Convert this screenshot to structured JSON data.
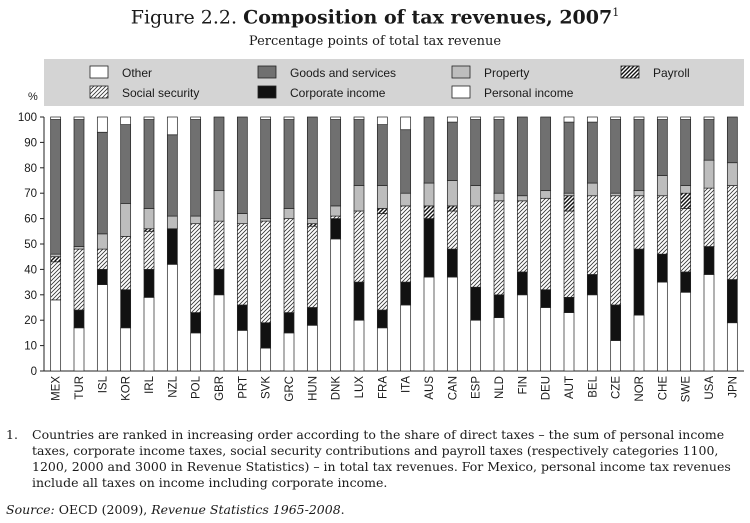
{
  "figure": {
    "label": "Figure 2.2.",
    "title": "Composition of tax revenues, 2007",
    "title_note_marker": "1",
    "subtitle": "Percentage points of total tax revenue"
  },
  "chart_data": {
    "type": "bar",
    "stacked": true,
    "y_axis_label": "%",
    "ylim": [
      0,
      100
    ],
    "yticks": [
      0,
      10,
      20,
      30,
      40,
      50,
      60,
      70,
      80,
      90,
      100
    ],
    "grid": false,
    "legend_position": "top",
    "categories": [
      "MEX",
      "TUR",
      "ISL",
      "KOR",
      "IRL",
      "NZL",
      "POL",
      "GBR",
      "PRT",
      "SVK",
      "GRC",
      "HUN",
      "DNK",
      "LUX",
      "FRA",
      "ITA",
      "AUS",
      "CAN",
      "ESP",
      "NLD",
      "FIN",
      "DEU",
      "AUT",
      "BEL",
      "CZE",
      "NOR",
      "CHE",
      "SWE",
      "USA",
      "JPN"
    ],
    "series": [
      {
        "name": "Personal income",
        "key": "personal",
        "pattern": "white",
        "values": [
          28,
          17,
          34,
          17,
          29,
          42,
          15,
          30,
          16,
          9,
          15,
          18,
          52,
          20,
          17,
          26,
          37,
          37,
          20,
          21,
          30,
          25,
          23,
          30,
          12,
          22,
          35,
          31,
          38,
          19
        ]
      },
      {
        "name": "Corporate income",
        "key": "corporate",
        "pattern": "black",
        "values": [
          0,
          7,
          6,
          15,
          11,
          14,
          8,
          10,
          10,
          10,
          8,
          7,
          8,
          15,
          7,
          9,
          23,
          11,
          13,
          9,
          9,
          7,
          6,
          8,
          14,
          26,
          11,
          8,
          11,
          17
        ]
      },
      {
        "name": "Social security",
        "key": "social",
        "pattern": "hatch",
        "values": [
          15,
          24,
          8,
          21,
          15,
          0,
          35,
          19,
          32,
          40,
          37,
          32,
          1,
          28,
          38,
          30,
          0,
          15,
          32,
          37,
          28,
          36,
          34,
          31,
          43,
          21,
          23,
          25,
          23,
          37
        ]
      },
      {
        "name": "Payroll",
        "key": "payroll",
        "pattern": "crosshatch",
        "values": [
          2,
          0,
          0,
          0,
          1,
          0,
          0,
          0,
          0,
          0,
          0,
          1,
          0,
          0,
          2,
          0,
          5,
          2,
          0,
          0,
          0,
          0,
          6,
          0,
          0,
          0,
          0,
          6,
          0,
          0
        ]
      },
      {
        "name": "Property",
        "key": "property",
        "pattern": "lightgray",
        "values": [
          1,
          1,
          6,
          13,
          8,
          5,
          3,
          12,
          4,
          1,
          4,
          2,
          4,
          10,
          9,
          5,
          9,
          10,
          8,
          3,
          2,
          3,
          1,
          5,
          1,
          2,
          8,
          3,
          11,
          9
        ]
      },
      {
        "name": "Goods and services",
        "key": "goods",
        "pattern": "darkgray",
        "values": [
          53,
          50,
          40,
          31,
          35,
          32,
          38,
          29,
          38,
          39,
          35,
          40,
          34,
          26,
          24,
          25,
          26,
          23,
          26,
          29,
          31,
          29,
          28,
          24,
          29,
          28,
          22,
          26,
          16,
          18
        ]
      },
      {
        "name": "Other",
        "key": "other",
        "pattern": "white",
        "values": [
          1,
          1,
          6,
          3,
          1,
          7,
          1,
          0,
          0,
          1,
          1,
          0,
          1,
          1,
          3,
          5,
          0,
          2,
          1,
          1,
          0,
          0,
          2,
          2,
          1,
          1,
          1,
          1,
          1,
          0
        ]
      }
    ],
    "legend": [
      {
        "label": "Other",
        "pattern": "white"
      },
      {
        "label": "Goods and services",
        "pattern": "darkgray"
      },
      {
        "label": "Property",
        "pattern": "lightgray"
      },
      {
        "label": "Payroll",
        "pattern": "crosshatch"
      },
      {
        "label": "Social security",
        "pattern": "hatch"
      },
      {
        "label": "Corporate income",
        "pattern": "black"
      },
      {
        "label": "Personal income",
        "pattern": "white"
      }
    ],
    "colors": {
      "darkgray": "#707070",
      "lightgray": "#bdbdbd",
      "black": "#111111",
      "legend_band": "#d4d4d4"
    }
  },
  "notes": {
    "number": "1.",
    "text": "Countries are ranked in increasing order according to the share of direct taxes – the sum of personal income taxes, corporate income taxes, social security contributions and payroll taxes (respectively categories 1100, 1200, 2000 and 3000 in Revenue Statistics) – in total tax revenues. For Mexico, personal income tax revenues include all taxes on income including corporate income."
  },
  "source": {
    "prefix": "Source:",
    "citation": "OECD (2009),",
    "publication": "Revenue Statistics 1965-2008",
    "suffix": "."
  }
}
